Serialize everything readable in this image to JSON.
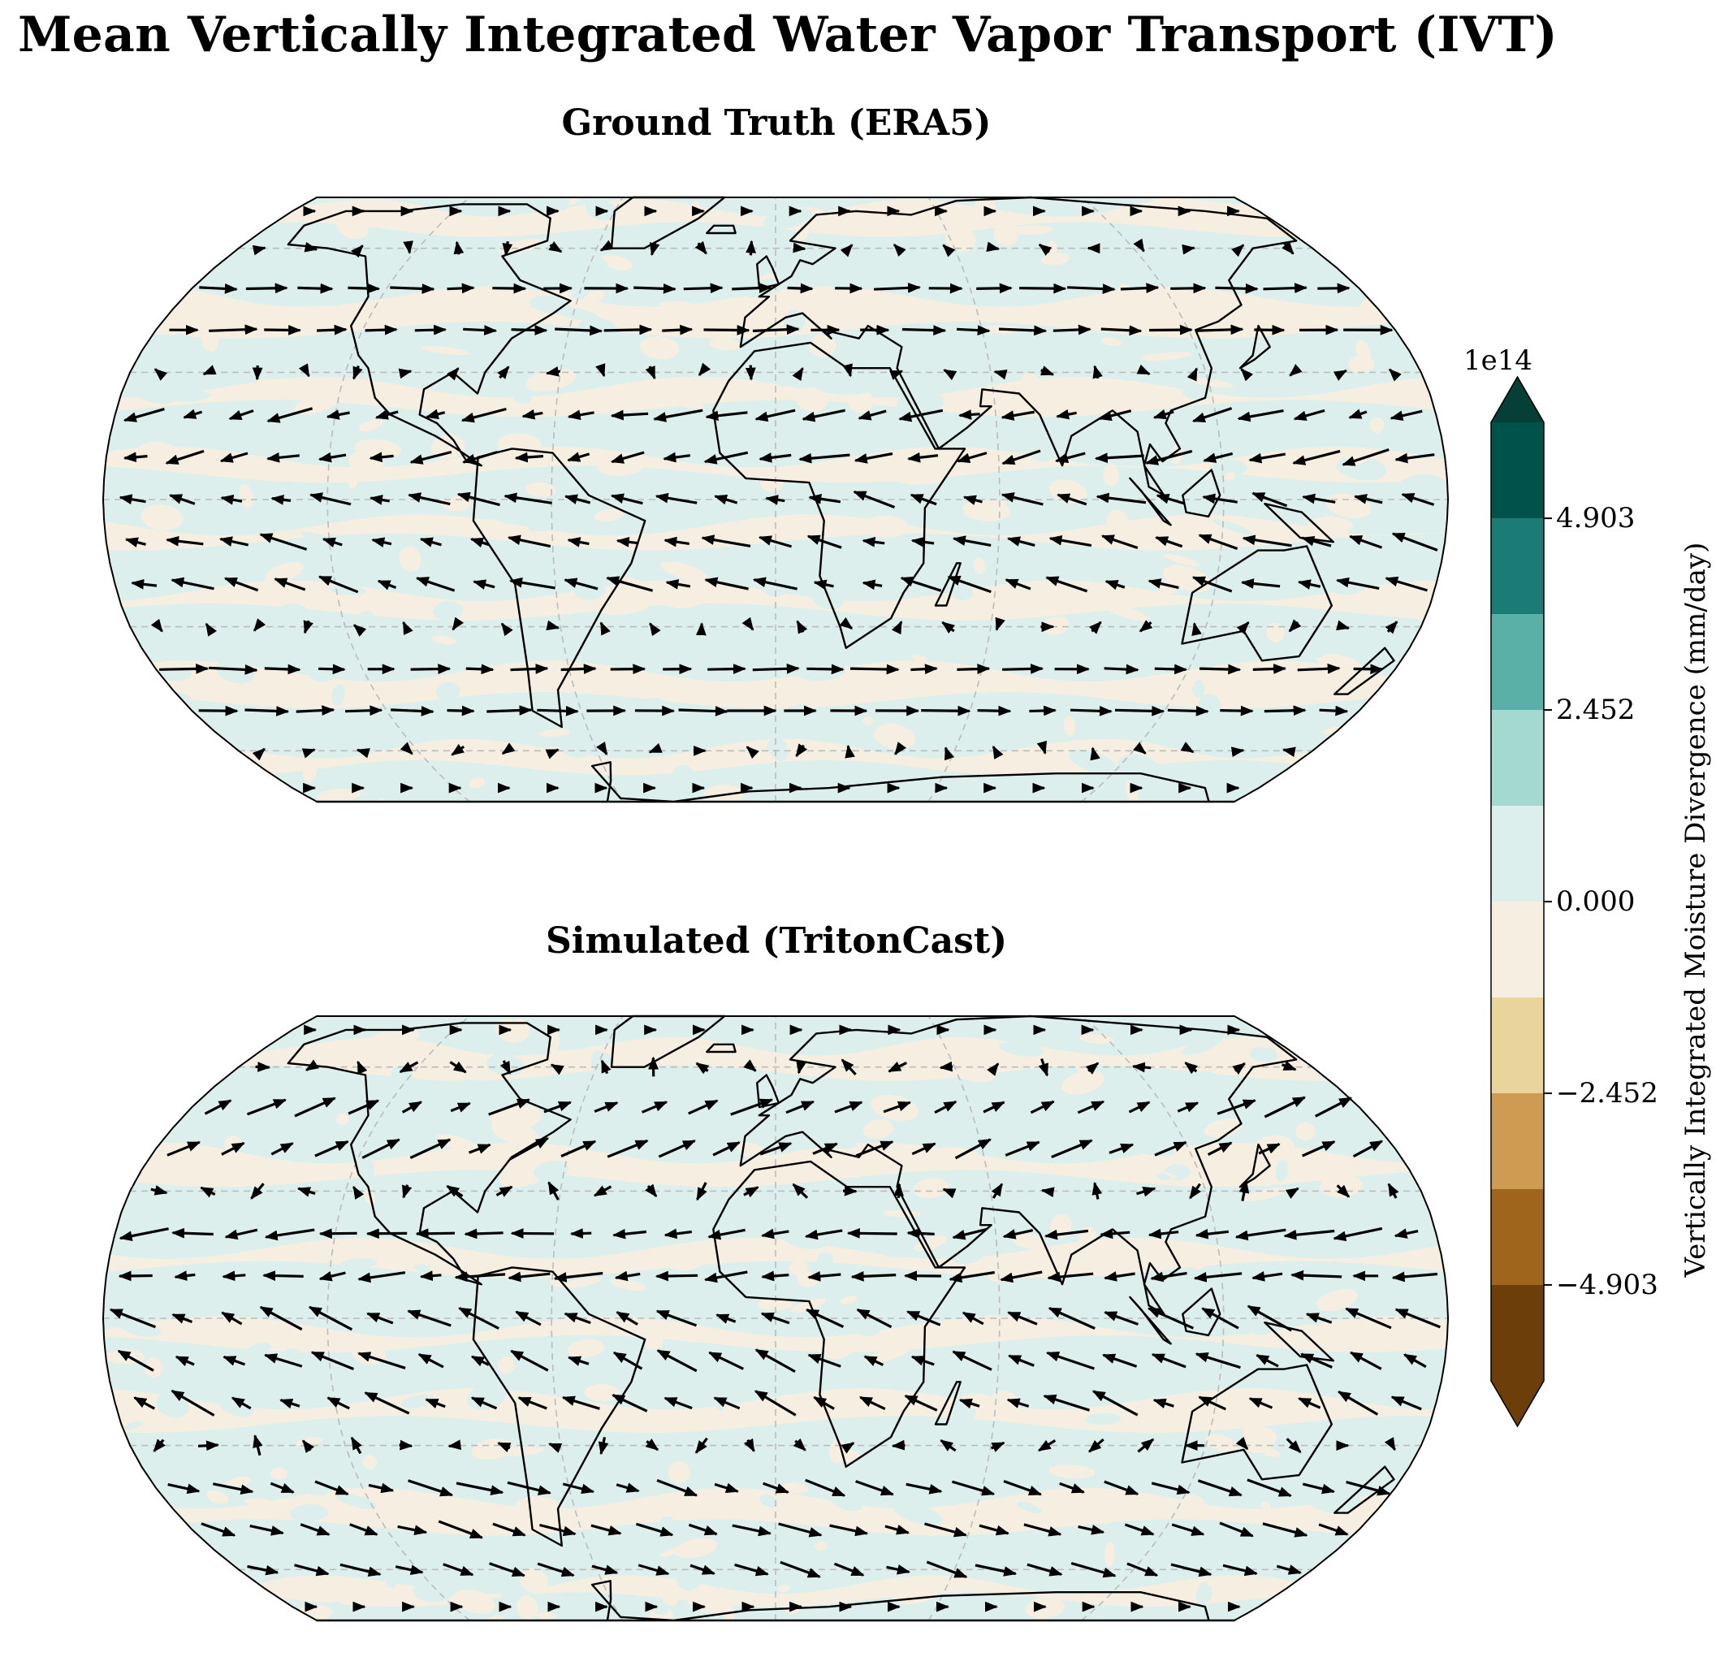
{
  "title": "Mean Vertically Integrated Water Vapor Transport (IVT)",
  "panels": [
    {
      "title": "Ground Truth (ERA5)"
    },
    {
      "title": "Simulated (TritonCast)"
    }
  ],
  "colorbar": {
    "label": "Vertically Integrated Moisture Divergence (mm/day)",
    "exponent": "1e14",
    "ticks": [
      "4.903",
      "2.452",
      "0.000",
      "−2.452",
      "−4.903"
    ],
    "tick_values": [
      4.903,
      2.452,
      0.0,
      -2.452,
      -4.903
    ],
    "levels_max": 6.13,
    "extend": "both",
    "colors": [
      "#6b3e0a",
      "#a0651c",
      "#cd9b52",
      "#e9d49c",
      "#f6efe1",
      "#dcefec",
      "#a3d9ce",
      "#5aafa6",
      "#1b7c75",
      "#00534b",
      "#063f38"
    ]
  },
  "map_colors": {
    "ocean_fill": "#dcefec",
    "land_fill": "#f6efe1",
    "coastline": "#000000",
    "graticule": "#bbbbbb",
    "arrows": "#000000"
  },
  "chart_data": [
    {
      "type": "vector_field_map",
      "projection": "robinson",
      "title": "Ground Truth (ERA5)",
      "field": "vertically integrated moisture divergence",
      "vectors": "mean IVT"
    },
    {
      "type": "vector_field_map",
      "projection": "robinson",
      "title": "Simulated (TritonCast)",
      "field": "vertically integrated moisture divergence",
      "vectors": "mean IVT"
    }
  ]
}
